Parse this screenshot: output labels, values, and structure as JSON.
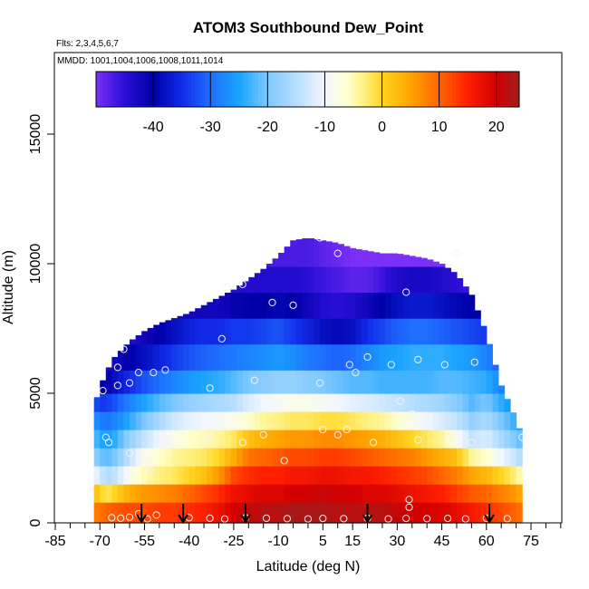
{
  "chart_data": {
    "type": "heatmap",
    "title": "ATOM3 Southbound Dew_Point",
    "flights_label": "Flts: 2,3,4,5,6,7",
    "dates_label": "MMDD: 1001,1004,1006,1008,1011,1014",
    "xlabel": "Latitude (deg N)",
    "ylabel": "Altitude (m)",
    "xlim": [
      -85,
      85
    ],
    "ylim": [
      0,
      18000
    ],
    "x_ticks": [
      -85,
      -70,
      -55,
      -40,
      -25,
      -10,
      5,
      15,
      30,
      45,
      60,
      75
    ],
    "y_ticks": [
      0,
      5000,
      10000,
      15000
    ],
    "colorbar": {
      "range": [
        -50,
        24
      ],
      "ticks": [
        -40,
        -30,
        -20,
        -10,
        0,
        10,
        20
      ],
      "placement": "top inside plot"
    },
    "arrows_latitude": [
      -56,
      -42,
      -21,
      20,
      61
    ],
    "envelope": {
      "lat": [
        -72,
        -70,
        -68,
        -65,
        -60,
        -55,
        -50,
        -45,
        -40,
        -35,
        -30,
        -25,
        -20,
        -15,
        -10,
        -5,
        0,
        5,
        10,
        15,
        20,
        25,
        30,
        35,
        40,
        45,
        50,
        55,
        60,
        65,
        70,
        72
      ],
      "top_alt": [
        4500,
        5200,
        5800,
        6400,
        7000,
        7400,
        7700,
        7900,
        8100,
        8400,
        8700,
        9000,
        9400,
        9800,
        10300,
        10900,
        11000,
        10900,
        10800,
        10600,
        10500,
        10400,
        10400,
        10300,
        10200,
        10000,
        9600,
        8800,
        7300,
        5300,
        4000,
        3300
      ]
    },
    "layers": [
      {
        "alt_top": 800,
        "dew": [
          8,
          9,
          10,
          11,
          12,
          12,
          13,
          13,
          14,
          15,
          17,
          20,
          21,
          22,
          22,
          23,
          23,
          23,
          22,
          22,
          22,
          22,
          21,
          20,
          20,
          19,
          18,
          16,
          14,
          12,
          10,
          9
        ]
      },
      {
        "alt_top": 1500,
        "dew": [
          2,
          1,
          -2,
          0,
          4,
          6,
          7,
          8,
          10,
          12,
          14,
          17,
          18,
          19,
          19,
          20,
          20,
          21,
          20,
          20,
          19,
          19,
          18,
          17,
          16,
          15,
          13,
          11,
          10,
          8,
          6,
          4
        ]
      },
      {
        "alt_top": 2200,
        "dew": [
          -10,
          -12,
          -16,
          -14,
          -8,
          -5,
          -3,
          -2,
          0,
          2,
          6,
          12,
          14,
          15,
          15,
          16,
          16,
          17,
          17,
          16,
          16,
          15,
          14,
          13,
          12,
          10,
          8,
          5,
          3,
          0,
          -3,
          -6
        ]
      },
      {
        "alt_top": 2900,
        "dew": [
          -18,
          -20,
          -22,
          -20,
          -14,
          -8,
          -6,
          -4,
          -3,
          -2,
          0,
          4,
          9,
          10,
          11,
          12,
          12,
          13,
          13,
          12,
          11,
          10,
          9,
          8,
          6,
          4,
          2,
          -4,
          -6,
          -10,
          -14,
          -16
        ]
      },
      {
        "alt_top": 3600,
        "dew": [
          -22,
          -24,
          -26,
          -24,
          -18,
          -14,
          -10,
          -8,
          -6,
          -5,
          -4,
          -2,
          2,
          4,
          5,
          6,
          6,
          7,
          7,
          6,
          5,
          4,
          2,
          0,
          -2,
          -4,
          -8,
          -14,
          -12,
          -16,
          -20,
          -22
        ]
      },
      {
        "alt_top": 4300,
        "dew": [
          -26,
          -28,
          -30,
          -28,
          -24,
          -20,
          -16,
          -13,
          -11,
          -10,
          -9,
          -8,
          -6,
          -4,
          -3,
          -2,
          -2,
          -1,
          -1,
          -2,
          -3,
          -4,
          -6,
          -8,
          -10,
          -12,
          -14,
          -18,
          -16,
          -20,
          -24,
          -26
        ]
      },
      {
        "alt_top": 5000,
        "dew": [
          -32,
          -34,
          -34,
          -32,
          -28,
          -25,
          -22,
          -20,
          -18,
          -17,
          -16,
          -15,
          -12,
          -10,
          -9,
          -8,
          -8,
          -9,
          -10,
          -11,
          -12,
          -13,
          -14,
          -15,
          -16,
          -17,
          -19,
          -22,
          -20,
          -24,
          -28,
          -30
        ]
      },
      {
        "alt_top": 5900,
        "dew": [
          -38,
          -40,
          -40,
          -38,
          -35,
          -32,
          -30,
          -28,
          -26,
          -25,
          -24,
          -22,
          -20,
          -19,
          -18,
          -18,
          -19,
          -20,
          -21,
          -22,
          -22,
          -23,
          -23,
          -23,
          -23,
          -22,
          -22,
          -23,
          -24,
          -28,
          -32,
          -34
        ]
      },
      {
        "alt_top": 6900,
        "dew": [
          -42,
          -44,
          -44,
          -42,
          -40,
          -38,
          -36,
          -34,
          -32,
          -31,
          -30,
          -29,
          -28,
          -27,
          -26,
          -27,
          -29,
          -30,
          -31,
          -30,
          -28,
          -26,
          -25,
          -24,
          -24,
          -24,
          -25,
          -26,
          -28,
          -32,
          -36,
          -38
        ]
      },
      {
        "alt_top": 7900,
        "dew": [
          -44,
          -45,
          -46,
          -45,
          -44,
          -42,
          -40,
          -38,
          -36,
          -35,
          -35,
          -34,
          -34,
          -33,
          -32,
          -34,
          -36,
          -38,
          -39,
          -38,
          -35,
          -33,
          -31,
          -30,
          -30,
          -31,
          -32,
          -33,
          -34,
          -36,
          -40,
          -42
        ]
      },
      {
        "alt_top": 8900,
        "dew": [
          -46,
          -46,
          -47,
          -47,
          -46,
          -45,
          -44,
          -43,
          -42,
          -42,
          -42,
          -41,
          -40,
          -40,
          -39,
          -40,
          -42,
          -44,
          -45,
          -44,
          -42,
          -40,
          -38,
          -37,
          -37,
          -38,
          -39,
          -40,
          -40,
          -42,
          -44,
          -46
        ]
      },
      {
        "alt_top": 9900,
        "dew": [
          -47,
          -47,
          -48,
          -48,
          -48,
          -47,
          -46,
          -46,
          -45,
          -45,
          -45,
          -44,
          -44,
          -44,
          -44,
          -44,
          -45,
          -46,
          -47,
          -48,
          -48,
          -46,
          -44,
          -43,
          -43,
          -44,
          -45,
          -46,
          -46,
          -46,
          -47,
          -47
        ]
      },
      {
        "alt_top": 11000,
        "dew": [
          -48,
          -48,
          -48,
          -48,
          -48,
          -48,
          -48,
          -48,
          -47,
          -47,
          -47,
          -47,
          -47,
          -47,
          -47,
          -47,
          -47,
          -48,
          -49,
          -50,
          -52,
          -53,
          -53,
          -53,
          -53,
          -53,
          -52,
          -50,
          -49,
          -48,
          -48,
          -48
        ]
      }
    ],
    "observation_points": [
      {
        "lat": -66,
        "alt": 200
      },
      {
        "lat": -63,
        "alt": 180
      },
      {
        "lat": -60,
        "alt": 220
      },
      {
        "lat": -57,
        "alt": 350
      },
      {
        "lat": -54,
        "alt": 150
      },
      {
        "lat": -51,
        "alt": 300
      },
      {
        "lat": -40,
        "alt": 200
      },
      {
        "lat": -33,
        "alt": 180
      },
      {
        "lat": -28,
        "alt": 150
      },
      {
        "lat": -21,
        "alt": 200
      },
      {
        "lat": -14,
        "alt": 180
      },
      {
        "lat": -7,
        "alt": 160
      },
      {
        "lat": 0,
        "alt": 150
      },
      {
        "lat": 5,
        "alt": 170
      },
      {
        "lat": 12,
        "alt": 160
      },
      {
        "lat": 20,
        "alt": 180
      },
      {
        "lat": 27,
        "alt": 150
      },
      {
        "lat": 33,
        "alt": 170
      },
      {
        "lat": 40,
        "alt": 160
      },
      {
        "lat": 47,
        "alt": 170
      },
      {
        "lat": 53,
        "alt": 150
      },
      {
        "lat": 60,
        "alt": 180
      },
      {
        "lat": 67,
        "alt": 160
      },
      {
        "lat": 34,
        "alt": 900
      },
      {
        "lat": 34,
        "alt": 600
      },
      {
        "lat": -68,
        "alt": 3300
      },
      {
        "lat": -67,
        "alt": 3100
      },
      {
        "lat": -60,
        "alt": 2700
      },
      {
        "lat": -55,
        "alt": 2500
      },
      {
        "lat": -53,
        "alt": 2000
      },
      {
        "lat": -48,
        "alt": 3200
      },
      {
        "lat": -47,
        "alt": 2900
      },
      {
        "lat": -35,
        "alt": 3100
      },
      {
        "lat": -33,
        "alt": 3300
      },
      {
        "lat": -22,
        "alt": 3100
      },
      {
        "lat": -8,
        "alt": 2400
      },
      {
        "lat": -15,
        "alt": 3400
      },
      {
        "lat": 5,
        "alt": 3600
      },
      {
        "lat": 10,
        "alt": 3400
      },
      {
        "lat": 13,
        "alt": 3600
      },
      {
        "lat": 22,
        "alt": 3100
      },
      {
        "lat": 37,
        "alt": 3200
      },
      {
        "lat": 47,
        "alt": 3300
      },
      {
        "lat": 55,
        "alt": 3100
      },
      {
        "lat": 72,
        "alt": 3300
      },
      {
        "lat": -73,
        "alt": 4900
      },
      {
        "lat": -69,
        "alt": 5100
      },
      {
        "lat": -64,
        "alt": 5300
      },
      {
        "lat": -60,
        "alt": 5400
      },
      {
        "lat": -57,
        "alt": 5800
      },
      {
        "lat": -52,
        "alt": 5800
      },
      {
        "lat": -48,
        "alt": 5900
      },
      {
        "lat": -33,
        "alt": 5200
      },
      {
        "lat": -18,
        "alt": 5500
      },
      {
        "lat": 4,
        "alt": 5400
      },
      {
        "lat": 14,
        "alt": 6100
      },
      {
        "lat": 16,
        "alt": 5800
      },
      {
        "lat": 20,
        "alt": 6400
      },
      {
        "lat": 31,
        "alt": 4700
      },
      {
        "lat": 35,
        "alt": 4200
      },
      {
        "lat": 28,
        "alt": 6100
      },
      {
        "lat": 37,
        "alt": 6300
      },
      {
        "lat": 46,
        "alt": 6100
      },
      {
        "lat": 56,
        "alt": 6200
      },
      {
        "lat": -64,
        "alt": 6000
      },
      {
        "lat": -62,
        "alt": 6700
      },
      {
        "lat": -29,
        "alt": 7100
      },
      {
        "lat": -12,
        "alt": 8500
      },
      {
        "lat": -5,
        "alt": 8400
      },
      {
        "lat": 33,
        "alt": 8900
      },
      {
        "lat": -22,
        "alt": 9200
      },
      {
        "lat": -27,
        "alt": 9100
      },
      {
        "lat": 10,
        "alt": 10400
      },
      {
        "lat": 50,
        "alt": 10400
      },
      {
        "lat": 4,
        "alt": 11000
      }
    ]
  }
}
